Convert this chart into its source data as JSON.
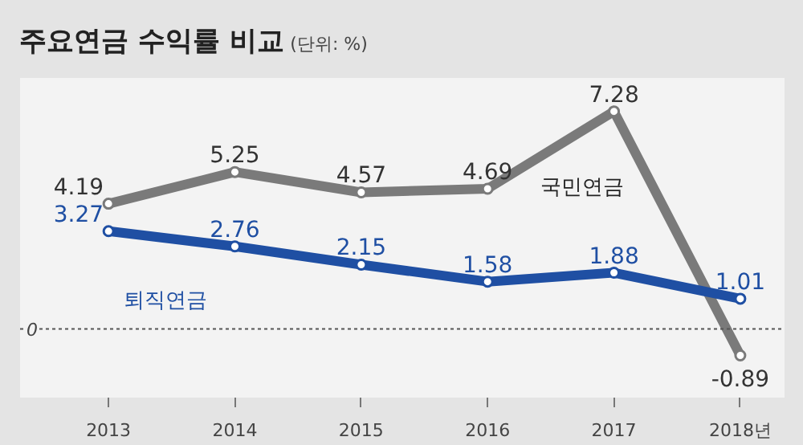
{
  "chart_data": {
    "type": "line",
    "title": "주요연금 수익률 비교",
    "subtitle": "(단위: %)",
    "categories": [
      "2013",
      "2014",
      "2015",
      "2016",
      "2017",
      "2018년"
    ],
    "series": [
      {
        "name": "국민연금",
        "color": "#7a7a7a",
        "values": [
          4.19,
          5.25,
          4.57,
          4.69,
          7.28,
          -0.89
        ]
      },
      {
        "name": "퇴직연금",
        "color": "#1f4fa3",
        "values": [
          3.27,
          2.76,
          2.15,
          1.58,
          1.88,
          1.01
        ]
      }
    ],
    "ylim": [
      -2.3,
      8.4
    ],
    "grid": false,
    "marker": "circle",
    "line_style": "solid",
    "data_labels": true,
    "ref_lines": [
      {
        "axis": "y",
        "value": 0,
        "label": "0",
        "color": "#555555",
        "line_style": "dotted"
      }
    ]
  }
}
